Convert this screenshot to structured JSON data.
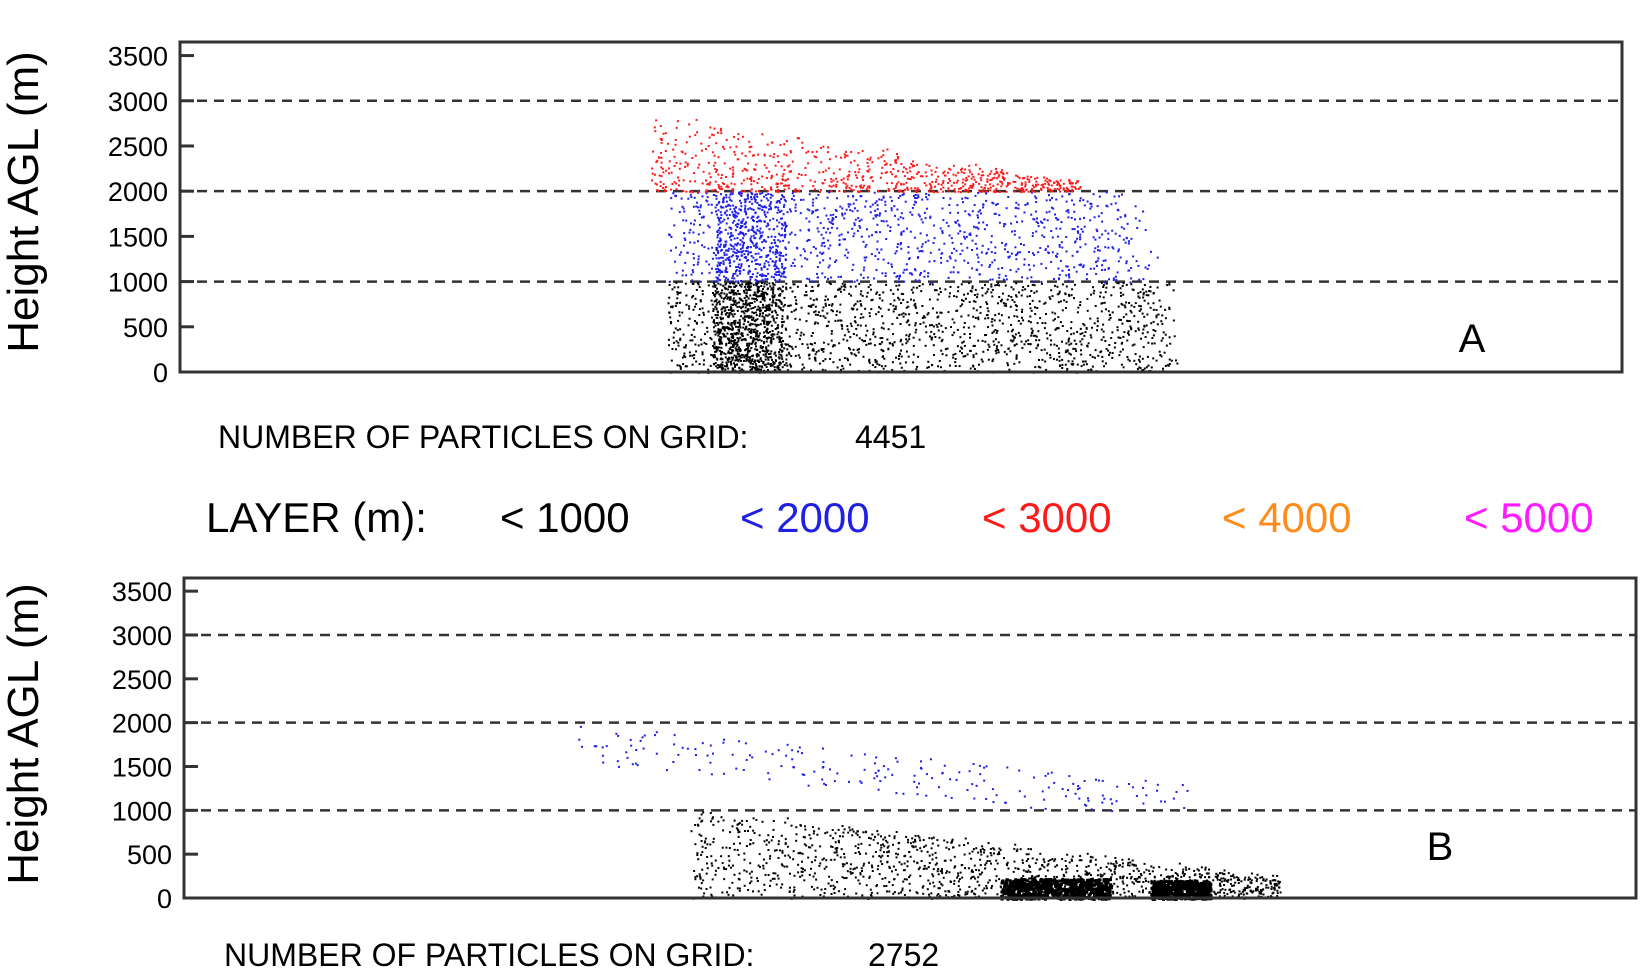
{
  "legend": {
    "label": "LAYER (m):",
    "entries": [
      {
        "text": "< 1000",
        "color": "#000000"
      },
      {
        "text": "< 2000",
        "color": "#1f1fe6"
      },
      {
        "text": "< 3000",
        "color": "#ff1a1a"
      },
      {
        "text": "< 4000",
        "color": "#ff8c1a"
      },
      {
        "text": "< 5000",
        "color": "#ff1aff"
      }
    ]
  },
  "chart_data": [
    {
      "type": "scatter",
      "panel_label": "A",
      "ylabel": "Height AGL (m)",
      "ylim": [
        0,
        3650
      ],
      "yticks": [
        0,
        500,
        1000,
        1500,
        2000,
        2500,
        3000,
        3500
      ],
      "ytick_labels": [
        "0",
        "500",
        "1000",
        "1500",
        "2000",
        "2500",
        "3000",
        "3500"
      ],
      "dashed_gridlines": [
        1000,
        2000,
        3000
      ],
      "count_label": "NUMBER OF PARTICLES ON GRID:",
      "count_value": "4451",
      "particle_count": 4451,
      "series": [
        {
          "layer": "< 1000",
          "color": "#000000",
          "approx_points": 2250
        },
        {
          "layer": "< 2000",
          "color": "#1f1fe6",
          "approx_points": 1450
        },
        {
          "layer": "< 3000",
          "color": "#ff1a1a",
          "approx_points": 751
        }
      ]
    },
    {
      "type": "scatter",
      "panel_label": "B",
      "ylabel": "Height AGL (m)",
      "ylim": [
        0,
        3650
      ],
      "yticks": [
        0,
        500,
        1000,
        1500,
        2000,
        2500,
        3000,
        3500
      ],
      "ytick_labels": [
        "0",
        "500",
        "1000",
        "1500",
        "2000",
        "2500",
        "3000",
        "3500"
      ],
      "dashed_gridlines": [
        1000,
        2000,
        3000
      ],
      "count_label": "NUMBER OF PARTICLES ON GRID:",
      "count_value": "2752",
      "particle_count": 2752,
      "series": [
        {
          "layer": "< 1000",
          "color": "#000000",
          "approx_points": 2550
        },
        {
          "layer": "< 2000",
          "color": "#1f1fe6",
          "approx_points": 202
        }
      ]
    }
  ]
}
